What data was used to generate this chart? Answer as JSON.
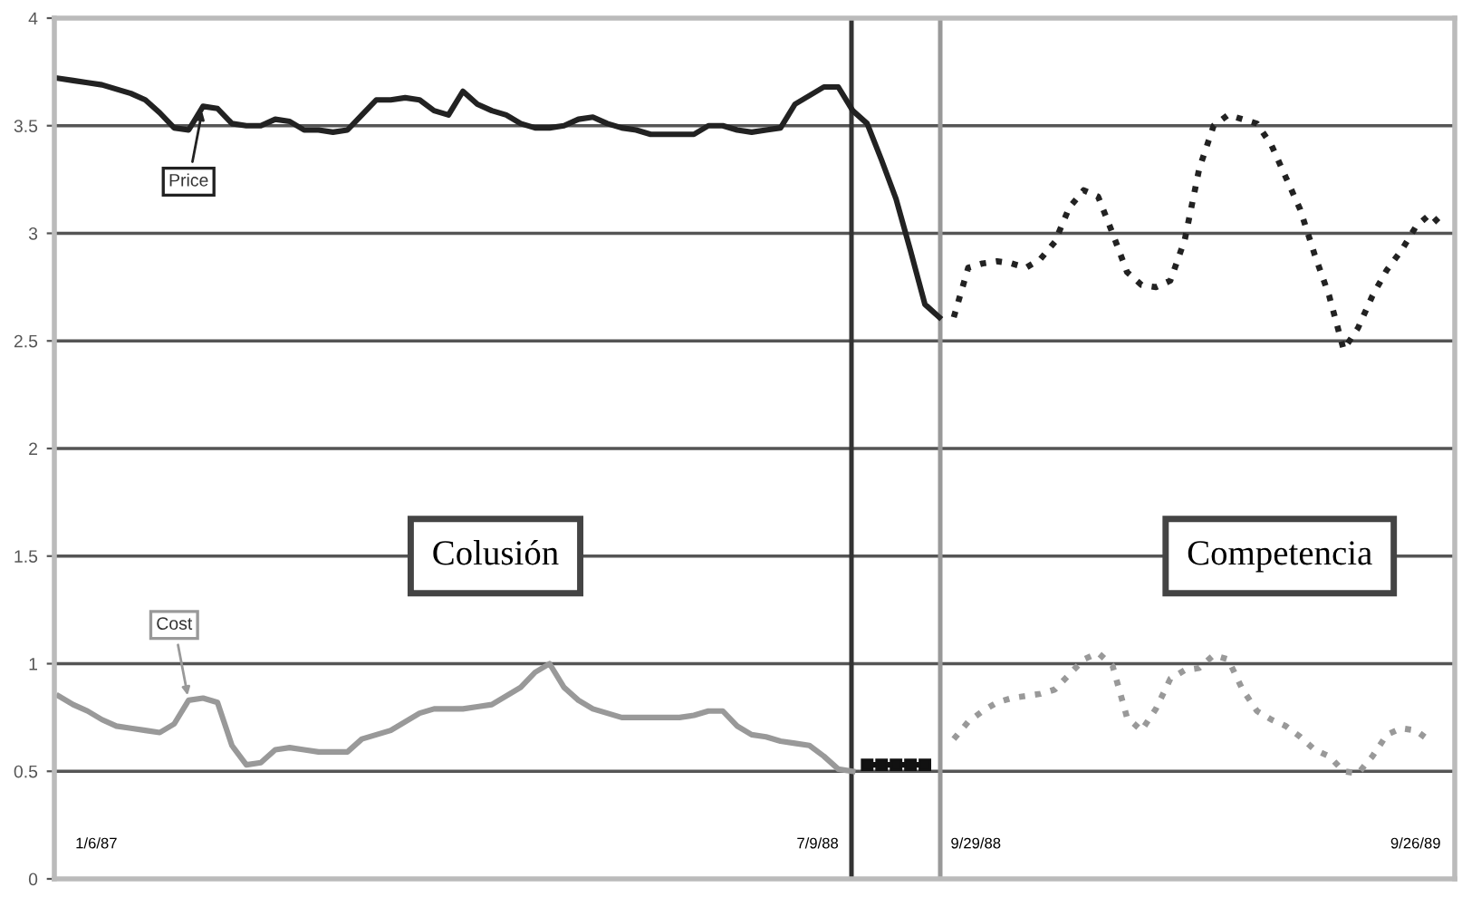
{
  "chart_data": {
    "type": "line",
    "categories": [
      null,
      null,
      null,
      null,
      null,
      null,
      null,
      null,
      null,
      null,
      null,
      null,
      null,
      null,
      null,
      null,
      null,
      null,
      null,
      null,
      null,
      null,
      null,
      null,
      null,
      null,
      null,
      null,
      null,
      null,
      null,
      null,
      null,
      null,
      null,
      null,
      null,
      null,
      null,
      null,
      null,
      null,
      null,
      null,
      null,
      null,
      null,
      null,
      null,
      null,
      null,
      null,
      null,
      null,
      null,
      null,
      null,
      null,
      null,
      null,
      null,
      null,
      null,
      null,
      null,
      null,
      null,
      null,
      null,
      null,
      null,
      null,
      null,
      null,
      null,
      null,
      null,
      null,
      null,
      null,
      null,
      null,
      null,
      null,
      null,
      null,
      null,
      null,
      null,
      null,
      null,
      null,
      null,
      null,
      null,
      null,
      null
    ],
    "ylim": [
      0,
      4
    ],
    "yticks": [
      0,
      0.5,
      1,
      1.5,
      2,
      2.5,
      3,
      3.5,
      4
    ],
    "tick_labels": "y",
    "grid": "y",
    "legend": false,
    "series": [
      {
        "name": "Price",
        "color": "#222222",
        "line_style": "solid",
        "values": [
          3.72,
          3.71,
          3.7,
          3.69,
          3.67,
          3.65,
          3.62,
          3.56,
          3.49,
          3.48,
          3.59,
          3.58,
          3.51,
          3.5,
          3.5,
          3.53,
          3.52,
          3.48,
          3.48,
          3.47,
          3.48,
          3.55,
          3.62,
          3.62,
          3.63,
          3.62,
          3.57,
          3.55,
          3.66,
          3.6,
          3.57,
          3.55,
          3.51,
          3.49,
          3.49,
          3.5,
          3.53,
          3.54,
          3.51,
          3.49,
          3.48,
          3.46,
          3.46,
          3.46,
          3.46,
          3.5,
          3.5,
          3.48,
          3.47,
          3.48,
          3.49,
          3.6,
          3.64,
          3.68,
          3.68,
          3.57,
          3.51,
          3.34,
          3.16,
          2.92,
          2.67,
          2.61,
          null,
          null,
          null,
          null,
          null,
          null,
          null,
          null,
          null,
          null,
          null,
          null,
          null,
          null,
          null,
          null,
          null,
          null,
          null,
          null,
          null,
          null,
          null,
          null,
          null,
          null,
          null,
          null,
          null,
          null,
          null,
          null,
          null,
          null,
          null
        ]
      },
      {
        "color": "#222222",
        "line_style": "dotted",
        "values": [
          null,
          null,
          null,
          null,
          null,
          null,
          null,
          null,
          null,
          null,
          null,
          null,
          null,
          null,
          null,
          null,
          null,
          null,
          null,
          null,
          null,
          null,
          null,
          null,
          null,
          null,
          null,
          null,
          null,
          null,
          null,
          null,
          null,
          null,
          null,
          null,
          null,
          null,
          null,
          null,
          null,
          null,
          null,
          null,
          null,
          null,
          null,
          null,
          null,
          null,
          null,
          null,
          null,
          null,
          null,
          null,
          null,
          null,
          null,
          null,
          null,
          null,
          2.61,
          2.84,
          2.86,
          2.87,
          2.86,
          2.84,
          2.88,
          2.96,
          3.12,
          3.2,
          3.17,
          3.0,
          2.82,
          2.76,
          2.75,
          2.78,
          2.97,
          3.3,
          3.5,
          3.55,
          3.53,
          3.51,
          3.41,
          3.26,
          3.11,
          2.9,
          2.71,
          2.46,
          2.56,
          2.71,
          2.83,
          2.92,
          3.03,
          3.09,
          3.02
        ]
      },
      {
        "name": "Cost",
        "color": "#999999",
        "line_style": "solid",
        "values": [
          0.85,
          0.81,
          0.78,
          0.74,
          0.71,
          0.7,
          0.69,
          0.68,
          0.72,
          0.83,
          0.84,
          0.82,
          0.62,
          0.53,
          0.54,
          0.6,
          0.61,
          0.6,
          0.59,
          0.59,
          0.59,
          0.65,
          0.67,
          0.69,
          0.73,
          0.77,
          0.79,
          0.79,
          0.79,
          0.8,
          0.81,
          0.85,
          0.89,
          0.96,
          1.0,
          0.89,
          0.83,
          0.79,
          0.77,
          0.75,
          0.75,
          0.75,
          0.75,
          0.75,
          0.76,
          0.78,
          0.78,
          0.71,
          0.67,
          0.66,
          0.64,
          0.63,
          0.62,
          0.57,
          0.51,
          0.5,
          null,
          null,
          null,
          null,
          null,
          null,
          null,
          null,
          null,
          null,
          null,
          null,
          null,
          null,
          null,
          null,
          null,
          null,
          null,
          null,
          null,
          null,
          null,
          null,
          null,
          null,
          null,
          null,
          null,
          null,
          null,
          null,
          null,
          null,
          null,
          null,
          null,
          null,
          null,
          null,
          null
        ]
      },
      {
        "color": "#111111",
        "line_style": "solid",
        "marker": "square",
        "values": [
          null,
          null,
          null,
          null,
          null,
          null,
          null,
          null,
          null,
          null,
          null,
          null,
          null,
          null,
          null,
          null,
          null,
          null,
          null,
          null,
          null,
          null,
          null,
          null,
          null,
          null,
          null,
          null,
          null,
          null,
          null,
          null,
          null,
          null,
          null,
          null,
          null,
          null,
          null,
          null,
          null,
          null,
          null,
          null,
          null,
          null,
          null,
          null,
          null,
          null,
          null,
          null,
          null,
          null,
          null,
          null,
          0.53,
          0.53,
          0.53,
          0.53,
          0.53,
          null,
          null,
          null,
          null,
          null,
          null,
          null,
          null,
          null,
          null,
          null,
          null,
          null,
          null,
          null,
          null,
          null,
          null,
          null,
          null,
          null,
          null,
          null,
          null,
          null,
          null,
          null,
          null,
          null,
          null,
          null,
          null,
          null,
          null,
          null,
          null
        ]
      },
      {
        "color": "#999999",
        "line_style": "dotted",
        "values": [
          null,
          null,
          null,
          null,
          null,
          null,
          null,
          null,
          null,
          null,
          null,
          null,
          null,
          null,
          null,
          null,
          null,
          null,
          null,
          null,
          null,
          null,
          null,
          null,
          null,
          null,
          null,
          null,
          null,
          null,
          null,
          null,
          null,
          null,
          null,
          null,
          null,
          null,
          null,
          null,
          null,
          null,
          null,
          null,
          null,
          null,
          null,
          null,
          null,
          null,
          null,
          null,
          null,
          null,
          null,
          null,
          null,
          null,
          null,
          null,
          null,
          null,
          0.65,
          0.73,
          0.78,
          0.82,
          0.84,
          0.85,
          0.86,
          0.88,
          0.95,
          1.02,
          1.05,
          0.99,
          0.75,
          0.69,
          0.79,
          0.93,
          0.97,
          0.98,
          1.04,
          1.02,
          0.88,
          0.78,
          0.74,
          0.71,
          0.66,
          0.6,
          0.57,
          0.5,
          0.49,
          0.57,
          0.67,
          0.7,
          0.69,
          0.64,
          null
        ]
      }
    ],
    "annotations": [
      "Colusión",
      "Competencia",
      "1/6/87",
      "7/9/88",
      "9/29/88",
      "9/26/89"
    ]
  }
}
